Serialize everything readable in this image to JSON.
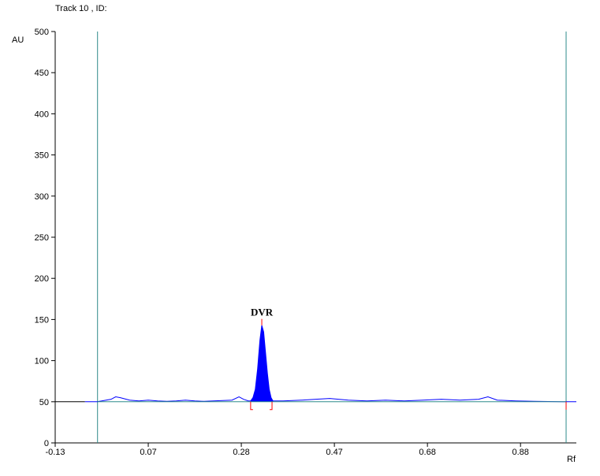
{
  "chart_data": {
    "type": "line",
    "title": "Track  10 , ID:",
    "xlabel": "Rf",
    "ylabel": "AU",
    "xlim": [
      -0.13,
      0.99
    ],
    "ylim": [
      0,
      500
    ],
    "x_tick_labels": [
      "-0.13",
      "0.07",
      "0.28",
      "0.47",
      "0.68",
      "0.88"
    ],
    "y_ticks": [
      0,
      50,
      100,
      150,
      200,
      250,
      300,
      350,
      400,
      450,
      500
    ],
    "grid": false,
    "baseline_au": 50,
    "markers_rf": [
      -0.039,
      0.968
    ],
    "peak": {
      "label": "DVR",
      "rf": 0.314,
      "height_au": 143,
      "start_rf": 0.29,
      "end_rf": 0.336
    },
    "series": [
      {
        "color": "#0000ff",
        "x": [
          -0.066,
          -0.04,
          -0.03,
          -0.01,
          0.0,
          0.01,
          0.03,
          0.05,
          0.07,
          0.09,
          0.11,
          0.13,
          0.15,
          0.17,
          0.19,
          0.21,
          0.23,
          0.25,
          0.265,
          0.275,
          0.285,
          0.29,
          0.295,
          0.3,
          0.305,
          0.31,
          0.314,
          0.318,
          0.322,
          0.326,
          0.33,
          0.334,
          0.338,
          0.36,
          0.4,
          0.43,
          0.46,
          0.5,
          0.54,
          0.58,
          0.62,
          0.66,
          0.7,
          0.74,
          0.78,
          0.8,
          0.82,
          0.86,
          0.9,
          0.96,
          0.99
        ],
        "y": [
          50,
          50,
          51,
          53,
          56,
          55,
          52,
          51,
          52,
          51,
          50.5,
          51,
          52,
          51,
          50.5,
          51,
          51.5,
          52,
          56,
          53,
          51,
          51,
          55,
          65,
          90,
          125,
          143,
          135,
          110,
          85,
          65,
          55,
          51,
          51,
          52,
          53,
          54,
          52,
          51,
          52,
          51,
          52,
          53,
          52,
          53,
          56,
          52,
          51,
          50.5,
          50,
          50
        ]
      }
    ],
    "colors": {
      "trace": "#0000ff",
      "baseline": "#2e8b8b",
      "marker": "#2e8b8b",
      "bracket": "#ff0000",
      "axis": "#000000"
    }
  }
}
